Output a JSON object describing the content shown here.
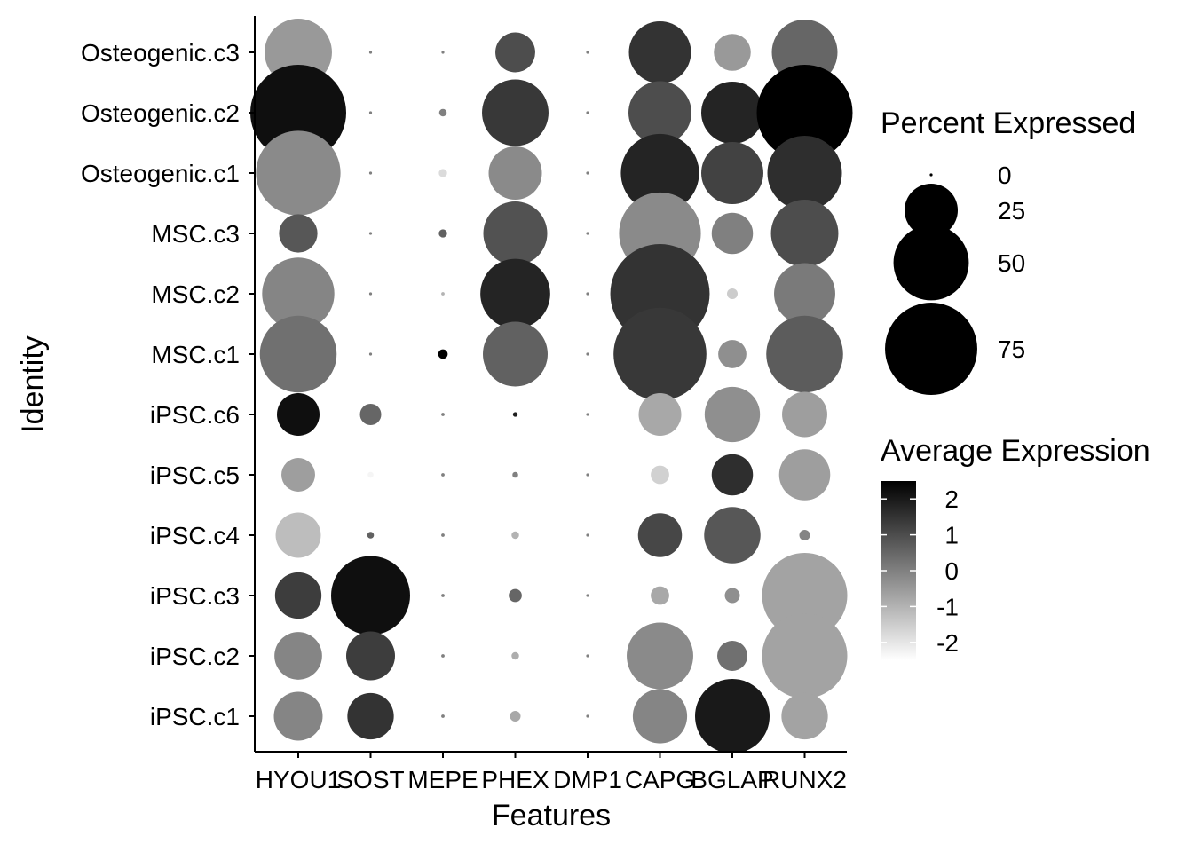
{
  "chart_data": {
    "type": "dotplot",
    "xlabel": "Features",
    "ylabel": "Identity",
    "features": [
      "HYOU1",
      "SOST",
      "MEPE",
      "PHEX",
      "DMP1",
      "CAPG",
      "BGLAP",
      "RUNX2"
    ],
    "identities": [
      "Osteogenic.c3",
      "Osteogenic.c2",
      "Osteogenic.c1",
      "MSC.c3",
      "MSC.c2",
      "MSC.c1",
      "iPSC.c6",
      "iPSC.c5",
      "iPSC.c4",
      "iPSC.c3",
      "iPSC.c2",
      "iPSC.c1"
    ],
    "percent_expressed": [
      [
        40,
        0,
        0,
        14,
        0,
        34,
        12,
        38
      ],
      [
        81,
        0,
        0.5,
        39,
        0,
        35,
        34,
        81
      ],
      [
        63,
        0,
        0.6,
        25,
        0,
        54,
        34,
        49
      ],
      [
        13,
        0,
        0.6,
        36,
        0,
        59,
        15,
        40
      ],
      [
        46,
        0,
        0.1,
        43,
        0,
        87,
        1,
        33
      ],
      [
        52,
        0,
        0.8,
        37,
        0,
        76,
        7,
        52
      ],
      [
        16,
        4,
        0.1,
        0.2,
        0,
        16,
        27,
        18
      ],
      [
        10,
        0.3,
        0.1,
        0.3,
        0,
        3,
        15,
        23
      ],
      [
        18,
        0.4,
        0.1,
        0.5,
        0,
        17,
        28,
        1
      ],
      [
        19,
        55,
        0.1,
        1.5,
        0,
        3,
        2,
        64
      ],
      [
        20,
        21,
        0.1,
        0.5,
        0,
        39,
        8,
        64
      ],
      [
        21,
        19,
        0.1,
        1.0,
        0,
        26,
        49,
        19
      ]
    ],
    "average_expression": [
      [
        -0.5,
        0,
        0,
        1.0,
        0,
        1.5,
        -0.5,
        0.5
      ],
      [
        2.2,
        0,
        0,
        1.4,
        0,
        1.0,
        1.8,
        2.8
      ],
      [
        -0.2,
        0,
        -1.8,
        -0.2,
        0,
        1.8,
        1.2,
        1.6
      ],
      [
        0.8,
        0,
        0.6,
        0.9,
        0,
        -0.2,
        0,
        1.0
      ],
      [
        -0.1,
        0,
        -1.0,
        1.8,
        0,
        1.5,
        -1.5,
        0.1
      ],
      [
        0.3,
        0,
        2.5,
        0.6,
        0,
        1.4,
        -0.3,
        0.7
      ],
      [
        2.2,
        0.5,
        0,
        1.9,
        0,
        -0.8,
        -0.3,
        -0.6
      ],
      [
        -0.6,
        -2.3,
        0,
        0,
        0,
        -1.6,
        1.6,
        -0.6
      ],
      [
        -1.2,
        0.6,
        0,
        -1.0,
        0,
        1.1,
        0.8,
        -0.1
      ],
      [
        1.3,
        2.2,
        0,
        0.5,
        0,
        -0.8,
        -0.3,
        -0.7
      ],
      [
        -0.1,
        1.3,
        0,
        -0.9,
        0,
        -0.2,
        0.3,
        -0.7
      ],
      [
        -0.1,
        1.5,
        0,
        -0.8,
        0,
        -0.1,
        2.0,
        -0.7
      ]
    ],
    "size_legend": {
      "title": "Percent Expressed",
      "values": [
        0,
        25,
        50,
        75
      ],
      "labels": [
        "0",
        "25",
        "50",
        "75"
      ]
    },
    "color_legend": {
      "title": "Average Expression",
      "range": [
        -2.5,
        2.5
      ],
      "ticks": [
        2,
        1,
        0,
        -1,
        -2
      ],
      "labels": [
        "2",
        "1",
        "0",
        "-1",
        "-2"
      ],
      "low_color": "#ffffff",
      "high_color": "#000000"
    }
  }
}
